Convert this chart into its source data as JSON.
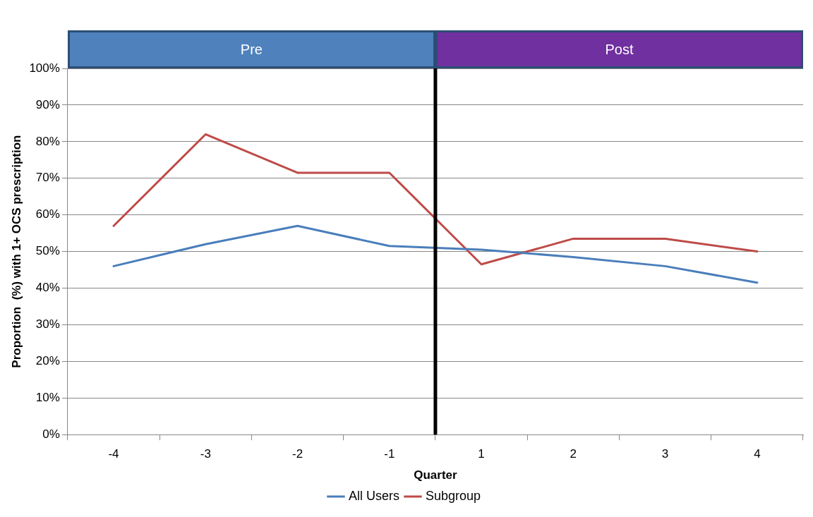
{
  "chart_data": {
    "type": "line",
    "xlabel": "Quarter",
    "ylabel": "Proportion  (%) with 1+ OCS prescription",
    "categories": [
      "-4",
      "-3",
      "-2",
      "-1",
      "1",
      "2",
      "3",
      "4"
    ],
    "series": [
      {
        "name": "All Users",
        "color": "#4a7ebb",
        "values": [
          46,
          52,
          57,
          51.5,
          50.5,
          48.5,
          46,
          41.5
        ]
      },
      {
        "name": "Subgroup",
        "color": "#be4b48",
        "values": [
          57,
          82,
          71.5,
          71.5,
          46.5,
          53.5,
          53.5,
          50
        ]
      }
    ],
    "ylim": [
      0,
      100
    ],
    "yticks": [
      {
        "value": 0,
        "label": "0%"
      },
      {
        "value": 10,
        "label": "10%"
      },
      {
        "value": 20,
        "label": "20%"
      },
      {
        "value": 30,
        "label": "30%"
      },
      {
        "value": 40,
        "label": "40%"
      },
      {
        "value": 50,
        "label": "50%"
      },
      {
        "value": 60,
        "label": "60%"
      },
      {
        "value": 70,
        "label": "70%"
      },
      {
        "value": 80,
        "label": "80%"
      },
      {
        "value": 90,
        "label": "90%"
      },
      {
        "value": 100,
        "label": "100%"
      }
    ],
    "ref_lines": [
      {
        "axis": "x",
        "value": "1",
        "color": "#000000"
      }
    ],
    "annotations": [
      "Pre",
      "Post"
    ],
    "grid": "y",
    "legend": "bottom",
    "marker": "none",
    "line_style": "solid"
  }
}
